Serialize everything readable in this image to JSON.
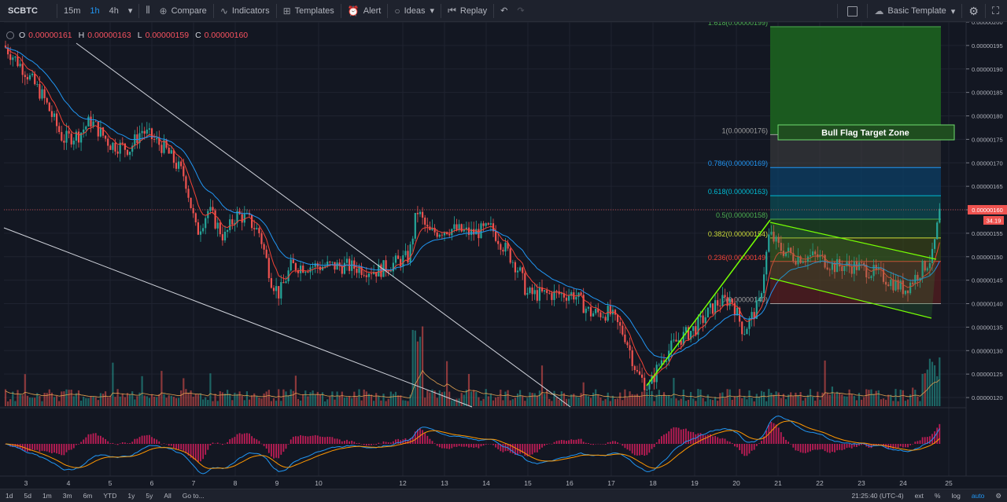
{
  "toolbar": {
    "symbol": "SCBTC",
    "intervals": [
      "15m",
      "1h",
      "4h"
    ],
    "compare": "Compare",
    "indicators": "Indicators",
    "templates": "Templates",
    "alert": "Alert",
    "ideas": "Ideas",
    "replay": "Replay",
    "basic_template": "Basic Template"
  },
  "legend": {
    "o_label": "O",
    "o": "0.00000161",
    "h_label": "H",
    "h": "0.00000163",
    "l_label": "L",
    "l": "0.00000159",
    "c_label": "C",
    "c": "0.00000160"
  },
  "bottombar": {
    "ranges": [
      "1d",
      "5d",
      "1m",
      "3m",
      "6m",
      "YTD",
      "1y",
      "5y",
      "All",
      "Go to..."
    ],
    "time": "21:25:40 (UTC-4)",
    "ext": "ext",
    "percent": "%",
    "log": "log",
    "auto": "auto"
  },
  "colors": {
    "background": "#131722",
    "up": "#26a69a",
    "down": "#ef5350",
    "ema_fast": "#f44336",
    "ema_slow": "#2196f3",
    "fib_1618": "#4caf50",
    "fib_1": "#9e9e9e",
    "fib_0786": "#2196f3",
    "fib_0618": "#00bcd4",
    "fib_05": "#4caf50",
    "fib_0382": "#cddc39",
    "fib_0236": "#f44336",
    "fib_0": "#9e9e9e",
    "flag": "#76ff03",
    "macd": "#2196f3",
    "signal": "#ff9800",
    "hist": "#e91e63"
  },
  "chart_data": {
    "type": "candlestick",
    "symbol": "SCBTC",
    "interval": "1h",
    "x_ticks": [
      "3",
      "4",
      "5",
      "6",
      "7",
      "8",
      "9",
      "10",
      "12",
      "13",
      "14",
      "15",
      "16",
      "17",
      "18",
      "19",
      "20",
      "21",
      "22",
      "23",
      "24",
      "25"
    ],
    "y_ticks": [
      "0.00000200",
      "0.00000195",
      "0.00000190",
      "0.00000185",
      "0.00000180",
      "0.00000175",
      "0.00000170",
      "0.00000165",
      "0.00000160",
      "0.00000155",
      "0.00000150",
      "0.00000145",
      "0.00000140",
      "0.00000135",
      "0.00000130",
      "0.00000125",
      "0.00000120"
    ],
    "ylim": [
      1.18e-06,
      2e-06
    ],
    "last_price": "0.00000160",
    "last_volume": "34.19",
    "macd_zero_label": "0.0000",
    "price_path": [
      {
        "x": "3",
        "y": 1.94e-06
      },
      {
        "x": "4",
        "y": 1.75e-06
      },
      {
        "x": "5",
        "y": 1.78e-06
      },
      {
        "x": "6",
        "y": 1.75e-06
      },
      {
        "x": "7",
        "y": 1.66e-06
      },
      {
        "x": "8",
        "y": 1.57e-06
      },
      {
        "x": "9",
        "y": 1.42e-06
      },
      {
        "x": "10",
        "y": 1.49e-06
      },
      {
        "x": "12",
        "y": 1.6e-06
      },
      {
        "x": "13",
        "y": 1.56e-06
      },
      {
        "x": "14",
        "y": 1.55e-06
      },
      {
        "x": "15",
        "y": 1.42e-06
      },
      {
        "x": "16",
        "y": 1.42e-06
      },
      {
        "x": "17",
        "y": 1.37e-06
      },
      {
        "x": "18",
        "y": 1.22e-06
      },
      {
        "x": "19",
        "y": 1.34e-06
      },
      {
        "x": "20",
        "y": 1.4e-06
      },
      {
        "x": "21",
        "y": 1.55e-06
      },
      {
        "x": "22",
        "y": 1.49e-06
      },
      {
        "x": "23",
        "y": 1.46e-06
      },
      {
        "x": "24",
        "y": 1.48e-06
      },
      {
        "x": "25",
        "y": 1.6e-06
      }
    ],
    "fib_levels": [
      {
        "label": "1.618(0.00000199)",
        "value": 1.99e-06
      },
      {
        "label": "1(0.00000176)",
        "value": 1.76e-06
      },
      {
        "label": "0.786(0.00000169)",
        "value": 1.69e-06
      },
      {
        "label": "0.618(0.00000163)",
        "value": 1.63e-06
      },
      {
        "label": "0.5(0.00000158)",
        "value": 1.58e-06
      },
      {
        "label": "0.382(0.00000154)",
        "value": 1.54e-06
      },
      {
        "label": "0.236(0.00000149)",
        "value": 1.49e-06
      },
      {
        "label": "0(0.00000140)",
        "value": 1.4e-06
      }
    ],
    "annotations": [
      "Bull Flag Target Zone"
    ]
  }
}
